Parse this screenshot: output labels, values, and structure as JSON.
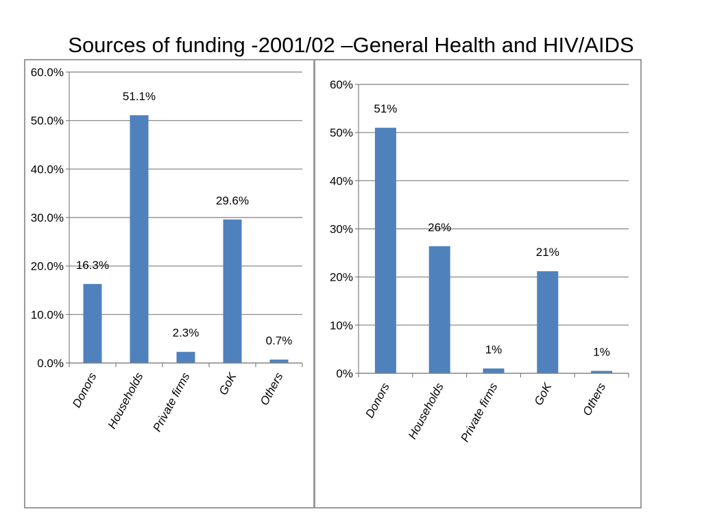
{
  "title": "Sources of funding -2001/02 –General Health and HIV/AIDS",
  "colors": {
    "bar": "#4f81bd",
    "grid": "#7f7f7f",
    "panel_border": "#9a9a9a"
  },
  "chart_data": [
    {
      "type": "bar",
      "title": "",
      "categories": [
        "Donors",
        "Households",
        "Private firms",
        "GoK",
        "Others"
      ],
      "values": [
        16.3,
        51.1,
        2.3,
        29.6,
        0.7
      ],
      "data_labels": [
        "16.3%",
        "51.1%",
        "2.3%",
        "29.6%",
        "0.7%"
      ],
      "ylim": [
        0,
        60
      ],
      "yticks": [
        0,
        10,
        20,
        30,
        40,
        50,
        60
      ],
      "ytick_labels": [
        "0.0%",
        "10.0%",
        "20.0%",
        "30.0%",
        "40.0%",
        "50.0%",
        "60.0%"
      ],
      "xlabel": "",
      "ylabel": "",
      "grid": true,
      "legend": "none"
    },
    {
      "type": "bar",
      "title": "",
      "categories": [
        "Donors",
        "Households",
        "Private firms",
        "GoK",
        "Others"
      ],
      "values": [
        51,
        26.4,
        1,
        21.2,
        0.5
      ],
      "data_labels": [
        "51%",
        "26%",
        "1%",
        "21%",
        "1%"
      ],
      "ylim": [
        0,
        60
      ],
      "yticks": [
        0,
        10,
        20,
        30,
        40,
        50,
        60
      ],
      "ytick_labels": [
        "0%",
        "10%",
        "20%",
        "30%",
        "40%",
        "50%",
        "60%"
      ],
      "xlabel": "",
      "ylabel": "",
      "grid": true,
      "legend": "none"
    }
  ]
}
